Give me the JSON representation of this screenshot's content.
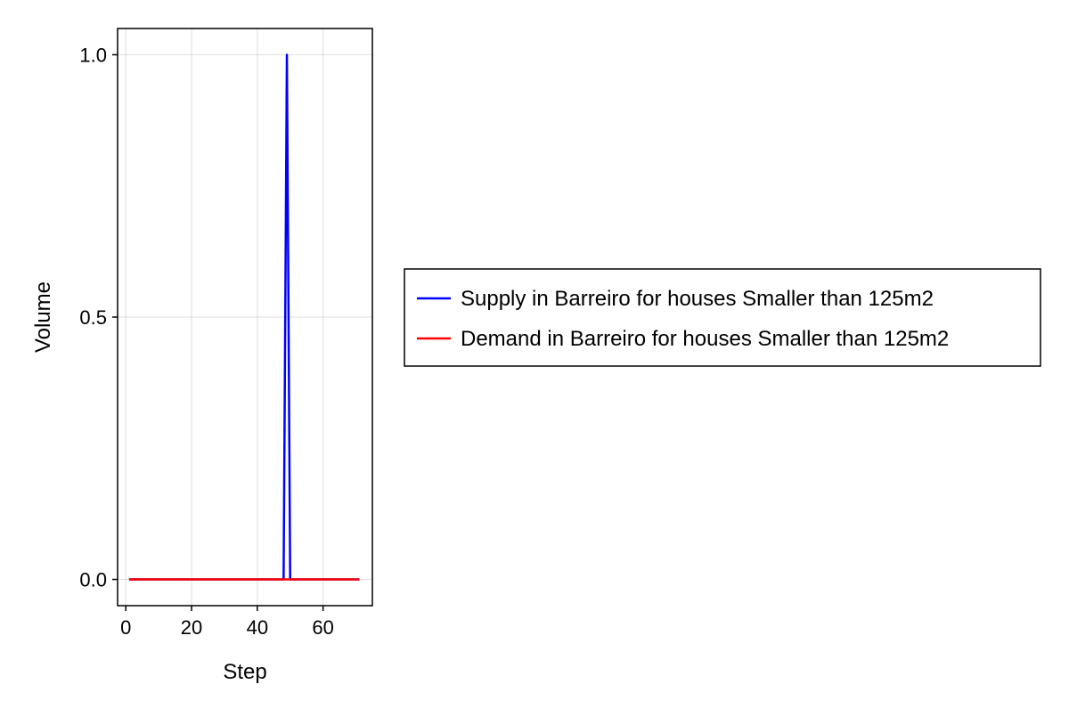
{
  "chart_data": {
    "type": "line",
    "title": "",
    "xlabel": "Step",
    "ylabel": "Volume",
    "xlim": [
      -2.5,
      75
    ],
    "ylim": [
      -0.05,
      1.05
    ],
    "xticks": [
      0,
      20,
      40,
      60
    ],
    "xtick_labels": [
      "0",
      "20",
      "40",
      "60"
    ],
    "yticks": [
      0.0,
      0.5,
      1.0
    ],
    "ytick_labels": [
      "0.0",
      "0.5",
      "1.0"
    ],
    "grid": true,
    "legend_position": "right",
    "series": [
      {
        "name": "Supply in Barreiro for houses Smaller than 125m2",
        "color": "#0000ff",
        "x": [
          1,
          48,
          49,
          50,
          71
        ],
        "y": [
          0,
          0,
          1,
          0,
          0
        ]
      },
      {
        "name": "Demand in Barreiro for houses Smaller than 125m2",
        "color": "#ff0000",
        "x": [
          1,
          71
        ],
        "y": [
          0,
          0
        ]
      }
    ]
  }
}
